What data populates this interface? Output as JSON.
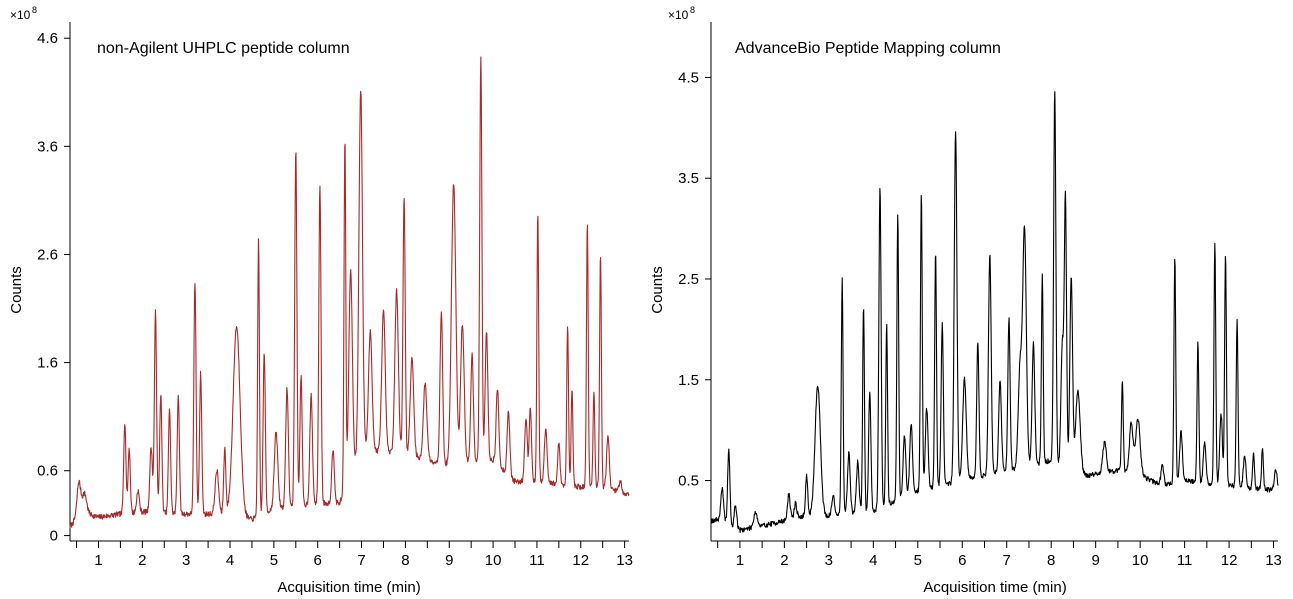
{
  "colors": {
    "left_trace": "#a52a2a",
    "right_trace": "#000000",
    "axis": "#000000"
  },
  "chart_data": [
    {
      "type": "line",
      "title": "non-Agilent UHPLC peptide column",
      "xlabel": "Acquisition time (min)",
      "ylabel": "Counts",
      "y_multiplier": "×10",
      "y_multiplier_exponent": "8",
      "xlim": [
        0.35,
        13.1
      ],
      "ylim": [
        -0.05,
        4.75
      ],
      "xticks": [
        1,
        2,
        3,
        4,
        5,
        6,
        7,
        8,
        9,
        10,
        11,
        12,
        13
      ],
      "yticks": [
        "0",
        "0.6",
        "1.6",
        "2.6",
        "3.6",
        "4.6"
      ],
      "ytick_values": [
        0,
        0.6,
        1.6,
        2.6,
        3.6,
        4.6
      ],
      "grid": false,
      "series": [
        {
          "color": "#a52a2a",
          "baseline": [
            [
              0.35,
              0.08
            ],
            [
              0.6,
              0.22
            ],
            [
              1.0,
              0.17
            ],
            [
              1.5,
              0.2
            ],
            [
              2.0,
              0.22
            ],
            [
              3.0,
              0.2
            ],
            [
              4.0,
              0.2
            ],
            [
              4.5,
              0.15
            ],
            [
              5.0,
              0.25
            ],
            [
              6.0,
              0.3
            ],
            [
              6.5,
              0.3
            ],
            [
              7.0,
              0.8
            ],
            [
              8.0,
              0.75
            ],
            [
              9.0,
              0.65
            ],
            [
              10.0,
              0.7
            ],
            [
              10.5,
              0.5
            ],
            [
              11.0,
              0.5
            ],
            [
              12.0,
              0.45
            ],
            [
              12.5,
              0.45
            ],
            [
              13.1,
              0.38
            ]
          ],
          "peaks": [
            [
              0.55,
              0.3,
              0.04
            ],
            [
              0.68,
              0.18,
              0.05
            ],
            [
              1.6,
              0.85,
              0.025
            ],
            [
              1.7,
              0.6,
              0.025
            ],
            [
              1.9,
              0.2,
              0.03
            ],
            [
              2.2,
              0.6,
              0.03
            ],
            [
              2.3,
              1.85,
              0.025
            ],
            [
              2.42,
              1.1,
              0.025
            ],
            [
              2.62,
              0.95,
              0.025
            ],
            [
              2.82,
              1.1,
              0.025
            ],
            [
              3.2,
              2.15,
              0.025
            ],
            [
              3.33,
              1.3,
              0.025
            ],
            [
              3.7,
              0.4,
              0.04
            ],
            [
              3.88,
              0.6,
              0.025
            ],
            [
              4.15,
              1.75,
              0.08
            ],
            [
              4.65,
              2.55,
              0.02
            ],
            [
              4.78,
              1.5,
              0.025
            ],
            [
              5.05,
              0.7,
              0.04
            ],
            [
              5.3,
              1.1,
              0.03
            ],
            [
              5.5,
              3.3,
              0.025
            ],
            [
              5.62,
              1.2,
              0.025
            ],
            [
              5.85,
              1.0,
              0.03
            ],
            [
              6.05,
              2.95,
              0.025
            ],
            [
              6.35,
              0.5,
              0.03
            ],
            [
              6.62,
              3.25,
              0.02
            ],
            [
              6.75,
              1.9,
              0.04
            ],
            [
              6.98,
              3.35,
              0.04
            ],
            [
              7.2,
              1.1,
              0.04
            ],
            [
              7.5,
              1.3,
              0.04
            ],
            [
              7.8,
              1.5,
              0.04
            ],
            [
              7.97,
              2.4,
              0.025
            ],
            [
              8.15,
              0.9,
              0.04
            ],
            [
              8.45,
              0.7,
              0.04
            ],
            [
              8.82,
              1.4,
              0.03
            ],
            [
              9.1,
              2.6,
              0.05
            ],
            [
              9.3,
              1.3,
              0.04
            ],
            [
              9.52,
              1.0,
              0.03
            ],
            [
              9.72,
              3.75,
              0.025
            ],
            [
              9.85,
              1.2,
              0.03
            ],
            [
              10.1,
              0.7,
              0.03
            ],
            [
              10.35,
              0.6,
              0.03
            ],
            [
              10.75,
              0.6,
              0.03
            ],
            [
              10.85,
              0.7,
              0.025
            ],
            [
              11.02,
              2.5,
              0.02
            ],
            [
              11.2,
              0.5,
              0.03
            ],
            [
              11.5,
              0.4,
              0.025
            ],
            [
              11.7,
              1.5,
              0.02
            ],
            [
              11.8,
              0.9,
              0.02
            ],
            [
              12.15,
              2.45,
              0.02
            ],
            [
              12.3,
              0.9,
              0.02
            ],
            [
              12.45,
              2.15,
              0.02
            ],
            [
              12.62,
              0.5,
              0.03
            ],
            [
              12.9,
              0.1,
              0.03
            ]
          ]
        }
      ]
    },
    {
      "type": "line",
      "title": "AdvanceBio Peptide Mapping column",
      "xlabel": "Acquisition time (min)",
      "ylabel": "Counts",
      "y_multiplier": "×10",
      "y_multiplier_exponent": "8",
      "xlim": [
        0.35,
        13.1
      ],
      "ylim": [
        -0.1,
        5.05
      ],
      "xticks": [
        1,
        2,
        3,
        4,
        5,
        6,
        7,
        8,
        9,
        10,
        11,
        12,
        13
      ],
      "yticks": [
        "0.5",
        "1.5",
        "2.5",
        "3.5",
        "4.5"
      ],
      "ytick_values": [
        0.5,
        1.5,
        2.5,
        3.5,
        4.5
      ],
      "grid": false,
      "series": [
        {
          "color": "#000000",
          "baseline": [
            [
              0.35,
              0.1
            ],
            [
              0.6,
              0.12
            ],
            [
              0.9,
              0.0
            ],
            [
              1.5,
              0.05
            ],
            [
              2.0,
              0.1
            ],
            [
              2.5,
              0.15
            ],
            [
              3.0,
              0.15
            ],
            [
              4.0,
              0.2
            ],
            [
              4.5,
              0.3
            ],
            [
              5.0,
              0.4
            ],
            [
              6.0,
              0.5
            ],
            [
              7.0,
              0.6
            ],
            [
              8.0,
              0.7
            ],
            [
              8.5,
              0.6
            ],
            [
              8.8,
              0.55
            ],
            [
              9.5,
              0.6
            ],
            [
              10.0,
              0.55
            ],
            [
              10.5,
              0.45
            ],
            [
              11.0,
              0.5
            ],
            [
              12.0,
              0.45
            ],
            [
              13.1,
              0.4
            ]
          ],
          "peaks": [
            [
              0.6,
              0.3,
              0.03
            ],
            [
              0.75,
              0.75,
              0.025
            ],
            [
              0.9,
              0.25,
              0.03
            ],
            [
              1.35,
              0.15,
              0.04
            ],
            [
              2.1,
              0.25,
              0.03
            ],
            [
              2.25,
              0.15,
              0.03
            ],
            [
              2.5,
              0.4,
              0.025
            ],
            [
              2.75,
              1.3,
              0.06
            ],
            [
              3.1,
              0.2,
              0.03
            ],
            [
              3.3,
              2.35,
              0.02
            ],
            [
              3.45,
              0.6,
              0.03
            ],
            [
              3.65,
              0.5,
              0.03
            ],
            [
              3.78,
              2.05,
              0.02
            ],
            [
              3.92,
              1.2,
              0.025
            ],
            [
              4.15,
              3.2,
              0.025
            ],
            [
              4.3,
              1.8,
              0.02
            ],
            [
              4.55,
              2.85,
              0.02
            ],
            [
              4.7,
              0.6,
              0.03
            ],
            [
              4.85,
              0.7,
              0.03
            ],
            [
              5.08,
              2.95,
              0.02
            ],
            [
              5.2,
              0.8,
              0.03
            ],
            [
              5.4,
              2.35,
              0.02
            ],
            [
              5.55,
              1.6,
              0.025
            ],
            [
              5.85,
              3.5,
              0.03
            ],
            [
              6.05,
              1.0,
              0.04
            ],
            [
              6.35,
              1.35,
              0.025
            ],
            [
              6.62,
              2.2,
              0.03
            ],
            [
              6.85,
              0.9,
              0.03
            ],
            [
              7.05,
              1.5,
              0.025
            ],
            [
              7.3,
              1.0,
              0.04
            ],
            [
              7.4,
              2.35,
              0.04
            ],
            [
              7.6,
              1.2,
              0.03
            ],
            [
              7.8,
              1.85,
              0.02
            ],
            [
              8.08,
              3.7,
              0.025
            ],
            [
              8.25,
              1.2,
              0.03
            ],
            [
              8.32,
              2.65,
              0.025
            ],
            [
              8.45,
              1.9,
              0.03
            ],
            [
              8.6,
              0.8,
              0.05
            ],
            [
              9.2,
              0.3,
              0.04
            ],
            [
              9.6,
              0.9,
              0.02
            ],
            [
              9.8,
              0.5,
              0.04
            ],
            [
              9.95,
              0.55,
              0.05
            ],
            [
              10.5,
              0.2,
              0.03
            ],
            [
              10.78,
              2.25,
              0.02
            ],
            [
              10.92,
              0.5,
              0.03
            ],
            [
              11.3,
              1.4,
              0.02
            ],
            [
              11.45,
              0.4,
              0.03
            ],
            [
              11.68,
              2.4,
              0.02
            ],
            [
              11.82,
              0.7,
              0.03
            ],
            [
              11.92,
              2.3,
              0.02
            ],
            [
              12.18,
              1.65,
              0.02
            ],
            [
              12.35,
              0.3,
              0.03
            ],
            [
              12.55,
              0.35,
              0.02
            ],
            [
              12.75,
              0.4,
              0.02
            ],
            [
              13.05,
              0.2,
              0.03
            ]
          ]
        }
      ]
    }
  ]
}
